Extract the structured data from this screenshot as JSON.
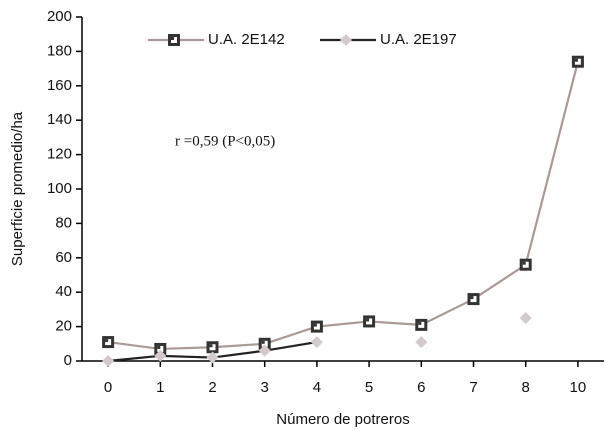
{
  "chart_data": {
    "type": "line",
    "x_label": "Número de potreros",
    "y_label": "Superficie promedio/ha",
    "annotation": "r =0,59 (P<0,05)",
    "categories": [
      "0",
      "1",
      "2",
      "3",
      "4",
      "5",
      "6",
      "7",
      "8",
      "10"
    ],
    "series": [
      {
        "name": "U.A. 2E142",
        "color": "#a89a96",
        "marker": "square",
        "marker_color": "#333333",
        "values": [
          11,
          7,
          8,
          10,
          20,
          23,
          21,
          36,
          56,
          174
        ]
      },
      {
        "name": "U.A. 2E197",
        "color": "#222222",
        "marker": "diamond",
        "marker_color": "#d3cbcb",
        "values": [
          0,
          3,
          2,
          6,
          11,
          null,
          11,
          null,
          25,
          null
        ]
      }
    ],
    "ylim": [
      0,
      200
    ],
    "yticks": [
      0,
      20,
      40,
      60,
      80,
      100,
      120,
      140,
      160,
      180,
      200
    ],
    "grid": false
  }
}
